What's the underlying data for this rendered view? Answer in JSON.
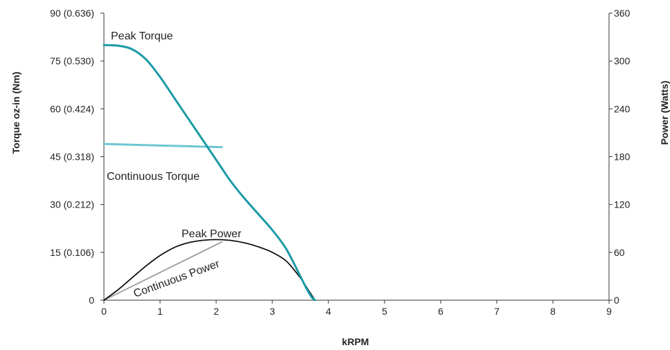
{
  "chart_data": {
    "type": "line",
    "xlabel": "kRPM",
    "ylabel_left": "Torque oz-in (Nm)",
    "ylabel_right": "Power (Watts)",
    "xlim": [
      0,
      9
    ],
    "ylim_left": [
      0,
      90
    ],
    "ylim_right": [
      0,
      360
    ],
    "x_ticks": [
      "0",
      "1",
      "2",
      "3",
      "4",
      "5",
      "6",
      "7",
      "8",
      "9"
    ],
    "y_left_ticks": [
      "0",
      "15 (0.106)",
      "30 (0.212)",
      "45 (0.318)",
      "60 (0.424)",
      "75 (0.530)",
      "90 (0.636)"
    ],
    "y_right_ticks": [
      "0",
      "60",
      "120",
      "180",
      "240",
      "300",
      "360"
    ],
    "grid": false,
    "series": [
      {
        "name": "Peak Torque",
        "axis": "left",
        "color": "#1a9aa6",
        "x": [
          0,
          0.25,
          0.5,
          0.75,
          1.0,
          1.25,
          1.5,
          1.75,
          2.0,
          2.25,
          2.5,
          2.75,
          3.0,
          3.25,
          3.5,
          3.6,
          3.7,
          3.76
        ],
        "y": [
          80,
          79.8,
          78.7,
          75.5,
          70,
          63.5,
          57,
          50.5,
          44,
          37.5,
          32,
          27,
          22,
          16,
          7.5,
          4,
          1,
          0
        ]
      },
      {
        "name": "Continuous Torque",
        "axis": "left",
        "color": "#6dc7d2",
        "x": [
          0,
          1.0,
          2.1
        ],
        "y": [
          49,
          48.5,
          48
        ]
      },
      {
        "name": "Peak Power",
        "axis": "right",
        "color": "#111111",
        "x": [
          0,
          0.25,
          0.5,
          0.75,
          1.0,
          1.25,
          1.5,
          1.75,
          2.0,
          2.25,
          2.5,
          2.75,
          3.0,
          3.25,
          3.5,
          3.65,
          3.76
        ],
        "y": [
          0,
          13,
          28,
          43,
          56,
          66,
          72,
          75,
          76,
          75,
          72,
          67,
          60,
          49,
          28,
          12,
          0
        ]
      },
      {
        "name": "Continuous Power",
        "axis": "right",
        "color": "#999999",
        "x": [
          0,
          2.1
        ],
        "y": [
          0,
          73
        ]
      }
    ]
  }
}
